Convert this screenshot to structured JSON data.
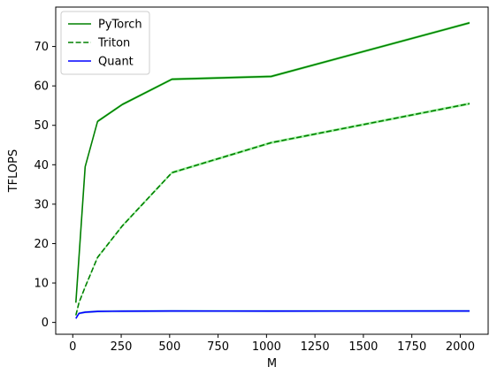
{
  "chart_data": {
    "type": "line",
    "xlabel": "M",
    "ylabel": "TFLOPS",
    "xlim": [
      -88,
      2144
    ],
    "ylim": [
      -3,
      80
    ],
    "xticks": [
      0,
      250,
      500,
      750,
      1000,
      1250,
      1500,
      1750,
      2000
    ],
    "yticks": [
      0,
      10,
      20,
      30,
      40,
      50,
      60,
      70
    ],
    "grid": false,
    "legend_position": "top-left",
    "series": [
      {
        "name": "PyTorch",
        "color": "#008000",
        "band_color": "#90ee90",
        "dash": "solid",
        "x": [
          16,
          64,
          128,
          256,
          512,
          1024,
          2048
        ],
        "y": [
          5.0,
          39.5,
          51.0,
          55.3,
          61.7,
          62.4,
          76.0
        ]
      },
      {
        "name": "Triton",
        "color": "#008000",
        "band_color": "#90ee90",
        "dash": "dashed",
        "x": [
          16,
          32,
          64,
          128,
          256,
          512,
          1024,
          2048
        ],
        "y": [
          1.8,
          5.0,
          9.0,
          16.5,
          24.5,
          38.0,
          45.6,
          55.5
        ]
      },
      {
        "name": "Quant",
        "color": "#0000ff",
        "band_color": "#add8e6",
        "dash": "solid",
        "x": [
          16,
          32,
          64,
          128,
          256,
          512,
          1024,
          2048
        ],
        "y": [
          1.0,
          2.3,
          2.6,
          2.8,
          2.85,
          2.9,
          2.88,
          2.9
        ]
      }
    ]
  }
}
